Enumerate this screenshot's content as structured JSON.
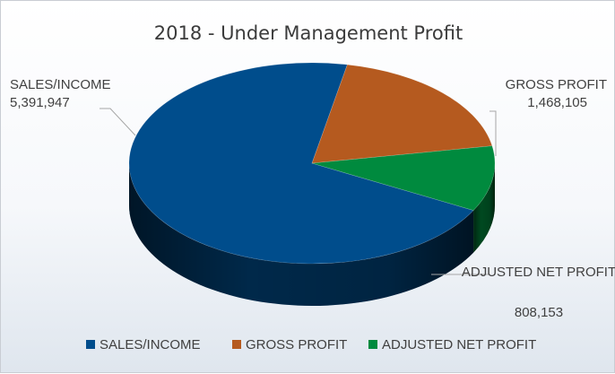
{
  "chart_data": {
    "type": "pie",
    "title": "2018 - Under Management Profit",
    "categories": [
      "SALES/INCOME",
      "GROSS PROFIT",
      "ADJUSTED NET PROFIT"
    ],
    "values": [
      5391947,
      1468105,
      808153
    ],
    "value_labels": [
      "5,391,947",
      "1,468,105",
      "808,153"
    ],
    "colors": [
      "#004d8c",
      "#b55a1f",
      "#008a3e"
    ],
    "legend_position": "bottom",
    "style": "3d"
  }
}
